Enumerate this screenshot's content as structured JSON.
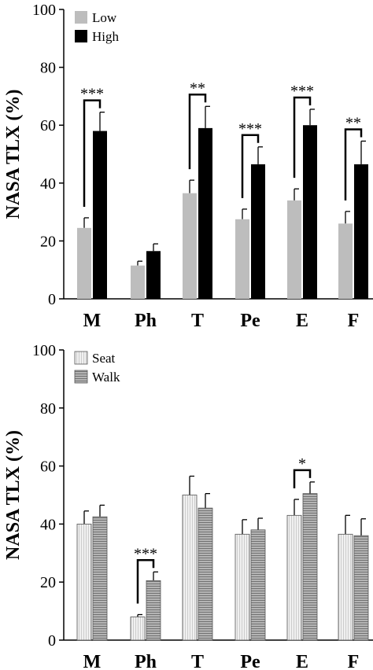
{
  "chart_data": [
    {
      "type": "bar",
      "ylabel": "NASA TLX (%)",
      "ylim": [
        0,
        100
      ],
      "yticks": [
        "0",
        "20",
        "40",
        "60",
        "80",
        "100"
      ],
      "categories": [
        "M",
        "Ph",
        "T",
        "Pe",
        "E",
        "F"
      ],
      "legend_position": "top-left",
      "series": [
        {
          "name": "Low",
          "color": "#bdbdbd",
          "pattern": "solid",
          "values": [
            24.5,
            11.5,
            36.5,
            27.5,
            34,
            26
          ],
          "errors": [
            3.5,
            1.5,
            4.5,
            3.5,
            4,
            4.2
          ]
        },
        {
          "name": "High",
          "color": "#000000",
          "pattern": "solid",
          "values": [
            58,
            16.5,
            59,
            46.5,
            60,
            46.5
          ],
          "errors": [
            6.5,
            2.5,
            7.5,
            6,
            5.5,
            8
          ]
        }
      ],
      "significance": [
        {
          "category": "M",
          "label": "***"
        },
        {
          "category": "T",
          "label": "**"
        },
        {
          "category": "Pe",
          "label": "***"
        },
        {
          "category": "E",
          "label": "***"
        },
        {
          "category": "F",
          "label": "**"
        }
      ]
    },
    {
      "type": "bar",
      "ylabel": "NASA TLX (%)",
      "ylim": [
        0,
        100
      ],
      "yticks": [
        "0",
        "20",
        "40",
        "60",
        "80",
        "100"
      ],
      "categories": [
        "M",
        "Ph",
        "T",
        "Pe",
        "E",
        "F"
      ],
      "legend_position": "top-left",
      "series": [
        {
          "name": "Seat",
          "color": "#f0f0f0",
          "pattern": "vertical-lines",
          "values": [
            40,
            8,
            50,
            36.5,
            43,
            36.5
          ],
          "errors": [
            4.5,
            0.8,
            6.5,
            5,
            5.5,
            6.5
          ]
        },
        {
          "name": "Walk",
          "color": "#a8a8a8",
          "pattern": "horizontal-lines",
          "values": [
            42.5,
            20.5,
            45.5,
            38,
            50.5,
            36
          ],
          "errors": [
            4,
            3,
            5,
            4,
            4,
            5.8
          ]
        }
      ],
      "significance": [
        {
          "category": "Ph",
          "label": "***"
        },
        {
          "category": "E",
          "label": "*"
        }
      ]
    }
  ]
}
